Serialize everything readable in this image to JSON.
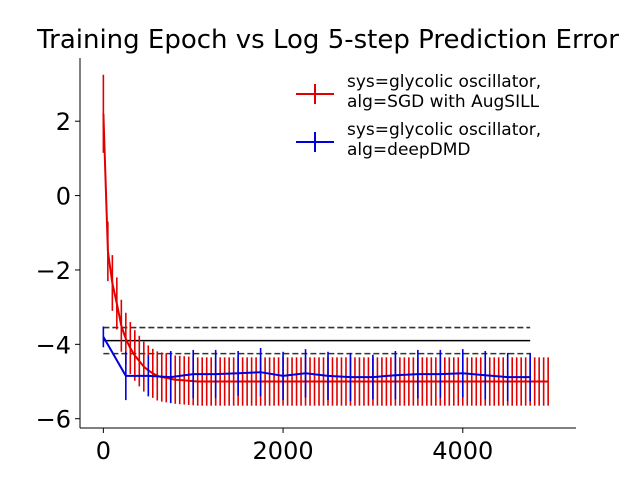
{
  "chart_data": {
    "type": "line",
    "title": "Training Epoch vs Log 5-step Prediction Error",
    "xlabel": "",
    "ylabel": "",
    "xlim": [
      -260,
      5260
    ],
    "ylim": [
      -6.25,
      3.7
    ],
    "x_ticks": [
      0,
      2000,
      4000
    ],
    "x_tick_labels": [
      "0",
      "2000",
      "4000"
    ],
    "y_ticks": [
      -6,
      -4,
      -2,
      0,
      2
    ],
    "y_tick_labels": [
      "−6",
      "−4",
      "−2",
      "0",
      "2"
    ],
    "legend_position": "upper-right",
    "series": [
      {
        "name": "sys=glycolic oscillator,\nalg=SGD with AugSILL",
        "legend_lines": [
          "sys=glycolic oscillator,",
          "alg=SGD with AugSILL"
        ],
        "color": "#e00000",
        "x": [
          0,
          50,
          100,
          150,
          200,
          250,
          300,
          350,
          400,
          450,
          500,
          550,
          600,
          650,
          700,
          750,
          800,
          850,
          900,
          950,
          1000,
          1050,
          1100,
          1150,
          1200,
          1250,
          1300,
          1350,
          1400,
          1450,
          1500,
          1550,
          1600,
          1650,
          1700,
          1750,
          1800,
          1850,
          1900,
          1950,
          2000,
          2050,
          2100,
          2150,
          2200,
          2250,
          2300,
          2350,
          2400,
          2450,
          2500,
          2550,
          2600,
          2650,
          2700,
          2750,
          2800,
          2850,
          2900,
          2950,
          3000,
          3050,
          3100,
          3150,
          3200,
          3250,
          3300,
          3350,
          3400,
          3450,
          3500,
          3550,
          3600,
          3650,
          3700,
          3750,
          3800,
          3850,
          3900,
          3950,
          4000,
          4050,
          4100,
          4150,
          4200,
          4250,
          4300,
          4350,
          4400,
          4450,
          4500,
          4550,
          4600,
          4650,
          4700,
          4750,
          4800,
          4850,
          4900,
          4950
        ],
        "y": [
          2.2,
          -1.5,
          -2.35,
          -2.9,
          -3.5,
          -3.85,
          -4.1,
          -4.3,
          -4.45,
          -4.6,
          -4.7,
          -4.78,
          -4.85,
          -4.88,
          -4.9,
          -4.93,
          -4.95,
          -4.96,
          -4.97,
          -4.98,
          -4.99,
          -5.0,
          -5.0,
          -5.0,
          -5.0,
          -5.0,
          -5.0,
          -5.0,
          -5.0,
          -5.0,
          -5.0,
          -5.0,
          -5.0,
          -5.0,
          -5.0,
          -5.0,
          -5.0,
          -5.0,
          -5.0,
          -5.0,
          -5.0,
          -5.0,
          -5.0,
          -5.0,
          -5.0,
          -5.0,
          -5.0,
          -5.0,
          -5.0,
          -5.0,
          -5.0,
          -5.0,
          -5.0,
          -5.0,
          -5.0,
          -5.0,
          -5.0,
          -5.0,
          -5.0,
          -5.0,
          -5.0,
          -5.0,
          -5.0,
          -5.0,
          -5.0,
          -5.0,
          -5.0,
          -5.0,
          -5.0,
          -5.0,
          -5.0,
          -5.0,
          -5.0,
          -5.0,
          -5.0,
          -5.0,
          -5.0,
          -5.0,
          -5.0,
          -5.0,
          -5.0,
          -5.0,
          -5.0,
          -5.0,
          -5.0,
          -5.0,
          -5.0,
          -5.0,
          -5.0,
          -5.0,
          -5.0,
          -5.0,
          -5.0,
          -5.0,
          -5.0,
          -5.0,
          -5.0,
          -5.0,
          -5.0,
          -5.0
        ],
        "err": [
          1.05,
          0.8,
          0.75,
          0.7,
          0.7,
          0.7,
          0.7,
          0.68,
          0.68,
          0.67,
          0.67,
          0.66,
          0.66,
          0.66,
          0.66,
          0.65,
          0.65,
          0.65,
          0.65,
          0.65,
          0.65,
          0.65,
          0.65,
          0.65,
          0.65,
          0.65,
          0.65,
          0.65,
          0.65,
          0.65,
          0.65,
          0.65,
          0.65,
          0.65,
          0.65,
          0.65,
          0.65,
          0.65,
          0.65,
          0.65,
          0.65,
          0.65,
          0.65,
          0.65,
          0.65,
          0.65,
          0.65,
          0.65,
          0.65,
          0.65,
          0.65,
          0.65,
          0.65,
          0.65,
          0.65,
          0.65,
          0.65,
          0.65,
          0.65,
          0.65,
          0.65,
          0.65,
          0.65,
          0.65,
          0.65,
          0.65,
          0.65,
          0.65,
          0.65,
          0.65,
          0.65,
          0.65,
          0.65,
          0.65,
          0.65,
          0.65,
          0.65,
          0.65,
          0.65,
          0.65,
          0.65,
          0.65,
          0.65,
          0.65,
          0.65,
          0.65,
          0.65,
          0.65,
          0.65,
          0.65,
          0.65,
          0.65,
          0.65,
          0.65,
          0.65,
          0.65,
          0.65,
          0.65,
          0.65,
          0.65
        ]
      },
      {
        "name": "sys=glycolic oscillator,\nalg=deepDMD",
        "legend_lines": [
          "sys=glycolic oscillator,",
          "alg=deepDMD"
        ],
        "color": "#0000dd",
        "x": [
          0,
          250,
          500,
          750,
          1000,
          1250,
          1500,
          1750,
          2000,
          2250,
          2500,
          2750,
          3000,
          3250,
          3500,
          3750,
          4000,
          4250,
          4500,
          4750
        ],
        "y": [
          -3.8,
          -4.85,
          -4.85,
          -4.88,
          -4.8,
          -4.8,
          -4.78,
          -4.75,
          -4.85,
          -4.78,
          -4.85,
          -4.88,
          -4.88,
          -4.83,
          -4.8,
          -4.8,
          -4.78,
          -4.83,
          -4.88,
          -4.88
        ],
        "err": [
          0.28,
          0.65,
          0.55,
          0.7,
          0.65,
          0.65,
          0.6,
          0.65,
          0.65,
          0.65,
          0.65,
          0.65,
          0.6,
          0.65,
          0.65,
          0.65,
          0.65,
          0.65,
          0.65,
          0.65
        ]
      }
    ],
    "reference_lines": [
      {
        "y": -3.55,
        "x_range": [
          0,
          4750
        ],
        "style": "dashed",
        "color": "#333333"
      },
      {
        "y": -3.9,
        "x_range": [
          0,
          4750
        ],
        "style": "solid",
        "color": "#000000"
      },
      {
        "y": -4.25,
        "x_range": [
          0,
          4750
        ],
        "style": "dashed",
        "color": "#333333"
      }
    ]
  }
}
